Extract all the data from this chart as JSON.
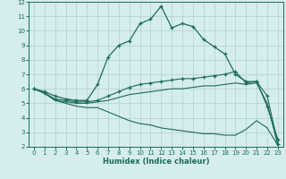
{
  "xlabel": "Humidex (Indice chaleur)",
  "xlim": [
    0,
    23
  ],
  "ylim": [
    2,
    12
  ],
  "xticks": [
    0,
    1,
    2,
    3,
    4,
    5,
    6,
    7,
    8,
    9,
    10,
    11,
    12,
    13,
    14,
    15,
    16,
    17,
    18,
    19,
    20,
    21,
    22,
    23
  ],
  "yticks": [
    2,
    3,
    4,
    5,
    6,
    7,
    8,
    9,
    10,
    11,
    12
  ],
  "bg_color": "#d6eded",
  "grid_color": "#b0cfcf",
  "line_color": "#1a6b5a",
  "curves": [
    {
      "name": "main_upper",
      "x": [
        0,
        1,
        2,
        3,
        4,
        5,
        6,
        7,
        8,
        9,
        10,
        11,
        12,
        13,
        14,
        15,
        16,
        17,
        18,
        19,
        20,
        21,
        22,
        23
      ],
      "y": [
        6.0,
        5.8,
        5.5,
        5.3,
        5.2,
        5.2,
        6.3,
        8.2,
        9.0,
        9.3,
        10.5,
        10.8,
        11.7,
        10.2,
        10.5,
        10.3,
        9.4,
        8.9,
        8.4,
        7.0,
        6.5,
        6.5,
        4.8,
        2.5
      ],
      "marker": true,
      "lw": 0.9
    },
    {
      "name": "mid_upper",
      "x": [
        0,
        1,
        2,
        3,
        4,
        5,
        6,
        7,
        8,
        9,
        10,
        11,
        12,
        13,
        14,
        15,
        16,
        17,
        18,
        19,
        20,
        21,
        22,
        23
      ],
      "y": [
        6.0,
        5.7,
        5.3,
        5.2,
        5.1,
        5.1,
        5.2,
        5.5,
        5.8,
        6.1,
        6.3,
        6.4,
        6.5,
        6.6,
        6.7,
        6.7,
        6.8,
        6.9,
        7.0,
        7.2,
        6.4,
        6.5,
        5.5,
        2.2
      ],
      "marker": true,
      "lw": 0.8
    },
    {
      "name": "mid_low",
      "x": [
        0,
        1,
        2,
        3,
        4,
        5,
        6,
        7,
        8,
        9,
        10,
        11,
        12,
        13,
        14,
        15,
        16,
        17,
        18,
        19,
        20,
        21,
        22,
        23
      ],
      "y": [
        6.0,
        5.7,
        5.2,
        5.1,
        5.0,
        5.0,
        5.1,
        5.2,
        5.4,
        5.6,
        5.7,
        5.8,
        5.9,
        6.0,
        6.0,
        6.1,
        6.2,
        6.2,
        6.3,
        6.4,
        6.3,
        6.4,
        5.0,
        2.1
      ],
      "marker": false,
      "lw": 0.8
    },
    {
      "name": "bottom",
      "x": [
        0,
        1,
        2,
        3,
        4,
        5,
        6,
        7,
        8,
        9,
        10,
        11,
        12,
        13,
        14,
        15,
        16,
        17,
        18,
        19,
        20,
        21,
        22,
        23
      ],
      "y": [
        6.0,
        5.7,
        5.2,
        5.0,
        4.8,
        4.7,
        4.7,
        4.4,
        4.1,
        3.8,
        3.6,
        3.5,
        3.3,
        3.2,
        3.1,
        3.0,
        2.9,
        2.9,
        2.8,
        2.8,
        3.2,
        3.8,
        3.3,
        2.1
      ],
      "marker": false,
      "lw": 0.8
    }
  ]
}
